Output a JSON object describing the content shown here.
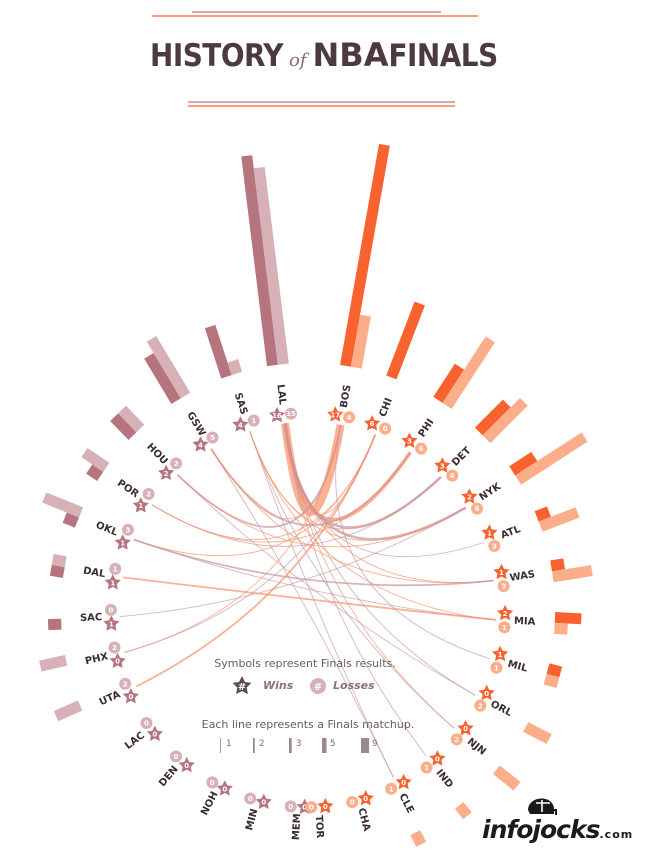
{
  "title": {
    "main": "HISTORY",
    "of": "of",
    "nba": "NBA",
    "finals": "FINALS"
  },
  "legend": {
    "symbols_text": "Symbols represent Finals results.",
    "wins_label": "Wins",
    "losses_label": "Losses",
    "wins_symbol": "#",
    "losses_symbol": "#",
    "lines_text": "Each line represents a Finals matchup.",
    "widths": [
      "1",
      "2",
      "3",
      "5",
      "9"
    ]
  },
  "brand": {
    "name": "infojocks",
    "suffix": ".com"
  },
  "colors": {
    "west_dark": "#b6747f",
    "west_light": "#d7b1b7",
    "east_dark": "#f7622f",
    "east_light": "#fcae8a",
    "west_line": "#c595a0",
    "east_line": "#f89066",
    "title": "#4d3a3f"
  },
  "chart_data": {
    "type": "radial-bar-chord",
    "title": "HISTORY of NBA FINALS",
    "west": {
      "teams": [
        "LAL",
        "SAS",
        "GSW",
        "HOU",
        "POR",
        "OKL",
        "DAL",
        "SAC",
        "PHX",
        "UTA",
        "LAC",
        "DEN",
        "NOH",
        "MIN",
        "MEM"
      ],
      "wins": [
        16,
        4,
        4,
        2,
        1,
        1,
        1,
        1,
        0,
        0,
        0,
        0,
        0,
        0,
        0
      ],
      "losses": [
        15,
        1,
        5,
        2,
        2,
        3,
        1,
        0,
        2,
        2,
        0,
        0,
        0,
        0,
        0
      ]
    },
    "east": {
      "teams": [
        "BOS",
        "CHI",
        "PHI",
        "DET",
        "NYK",
        "ATL",
        "WAS",
        "MIA",
        "MIL",
        "ORL",
        "NJN",
        "IND",
        "CLE",
        "CHA",
        "TOR"
      ],
      "wins": [
        17,
        6,
        3,
        3,
        2,
        1,
        1,
        2,
        1,
        0,
        0,
        0,
        0,
        0,
        0
      ],
      "losses": [
        4,
        0,
        6,
        4,
        6,
        3,
        3,
        1,
        1,
        2,
        2,
        1,
        1,
        0,
        0
      ]
    },
    "matchups": [
      {
        "a": "LAL",
        "b": "BOS",
        "count": 9
      },
      {
        "a": "LAL",
        "b": "NYK",
        "count": 3
      },
      {
        "a": "LAL",
        "b": "PHI",
        "count": 4
      },
      {
        "a": "LAL",
        "b": "DET",
        "count": 3
      },
      {
        "a": "LAL",
        "b": "CHI",
        "count": 1
      },
      {
        "a": "LAL",
        "b": "ORL",
        "count": 1
      },
      {
        "a": "LAL",
        "b": "NJN",
        "count": 1
      },
      {
        "a": "LAL",
        "b": "IND",
        "count": 1
      },
      {
        "a": "LAL",
        "b": "WAS",
        "count": 1
      },
      {
        "a": "LAL",
        "b": "ATL",
        "count": 1
      },
      {
        "a": "SAS",
        "b": "NYK",
        "count": 1
      },
      {
        "a": "SAS",
        "b": "NJN",
        "count": 1
      },
      {
        "a": "SAS",
        "b": "DET",
        "count": 1
      },
      {
        "a": "SAS",
        "b": "CLE",
        "count": 1
      },
      {
        "a": "SAS",
        "b": "MIA",
        "count": 1
      },
      {
        "a": "GSW",
        "b": "PHI",
        "count": 2
      },
      {
        "a": "GSW",
        "b": "WAS",
        "count": 1
      },
      {
        "a": "GSW",
        "b": "CLE",
        "count": 1
      },
      {
        "a": "GSW",
        "b": "BOS",
        "count": 1
      },
      {
        "a": "HOU",
        "b": "BOS",
        "count": 2
      },
      {
        "a": "HOU",
        "b": "NYK",
        "count": 1
      },
      {
        "a": "HOU",
        "b": "ORL",
        "count": 1
      },
      {
        "a": "POR",
        "b": "PHI",
        "count": 1
      },
      {
        "a": "POR",
        "b": "DET",
        "count": 1
      },
      {
        "a": "POR",
        "b": "CHI",
        "count": 1
      },
      {
        "a": "OKL",
        "b": "WAS",
        "count": 2
      },
      {
        "a": "OKL",
        "b": "CHI",
        "count": 1
      },
      {
        "a": "OKL",
        "b": "MIA",
        "count": 1
      },
      {
        "a": "DAL",
        "b": "MIA",
        "count": 2
      },
      {
        "a": "SAC",
        "b": "NYK",
        "count": 1
      },
      {
        "a": "PHX",
        "b": "BOS",
        "count": 1
      },
      {
        "a": "PHX",
        "b": "CHI",
        "count": 1
      },
      {
        "a": "UTA",
        "b": "CHI",
        "count": 2
      },
      {
        "a": "MIL",
        "b": "BOS",
        "count": 1
      }
    ]
  }
}
